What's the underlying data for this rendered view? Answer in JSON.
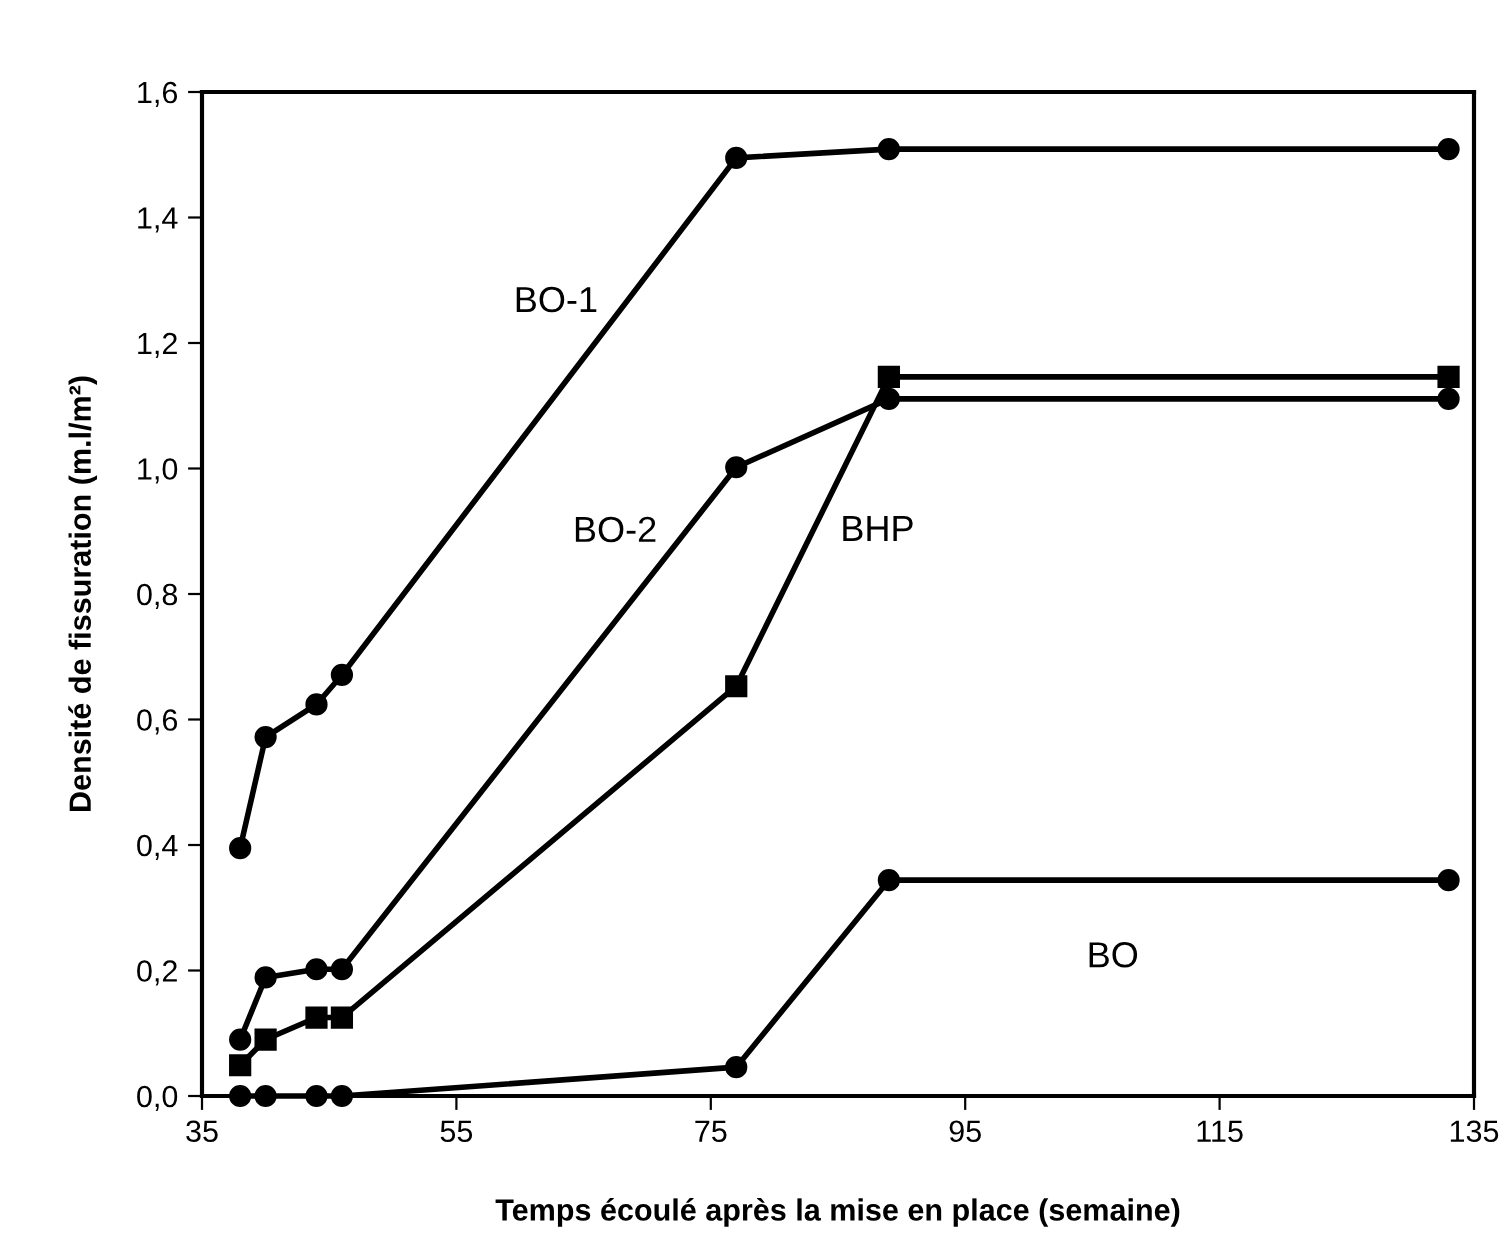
{
  "chart_data": {
    "type": "line",
    "xlabel": "Temps écoulé après la mise en place (semaine)",
    "ylabel": "Densité de fissuration (m.l/m²)",
    "x": [
      38,
      40,
      44,
      46,
      77,
      89,
      133
    ],
    "series": [
      {
        "name": "BO-1",
        "color": "#000000",
        "marker": "circle",
        "values": [
          0.395,
          0.572,
          0.624,
          0.671,
          1.495,
          1.509,
          1.509
        ]
      },
      {
        "name": "BO-2",
        "color": "#000000",
        "marker": "circle",
        "values": [
          0.09,
          0.189,
          0.202,
          0.202,
          1.002,
          1.111,
          1.111
        ]
      },
      {
        "name": "BHP",
        "color": "#000000",
        "marker": "square",
        "values": [
          0.049,
          0.09,
          0.125,
          0.125,
          0.653,
          1.146,
          1.146
        ]
      },
      {
        "name": "BO",
        "color": "#000000",
        "marker": "circle",
        "values": [
          0,
          0,
          0,
          0,
          0.046,
          0.344,
          0.344
        ]
      }
    ],
    "xlim": [
      35,
      135
    ],
    "xticks": [
      35,
      55,
      75,
      95,
      115,
      135
    ],
    "ylim": [
      0,
      1.6
    ],
    "yticks": [
      {
        "value": 0,
        "label": "0,0"
      },
      {
        "value": 0.2,
        "label": "0,2"
      },
      {
        "value": 0.4,
        "label": "0,4"
      },
      {
        "value": 0.6,
        "label": "0,6"
      },
      {
        "value": 0.8,
        "label": "0,8"
      },
      {
        "value": 1.0,
        "label": "1,0"
      },
      {
        "value": 1.2,
        "label": "1,2"
      },
      {
        "value": 1.4,
        "label": "1,4"
      },
      {
        "value": 1.6,
        "label": "1,6"
      }
    ],
    "grid": false,
    "legend": false,
    "line_style": "solid"
  }
}
